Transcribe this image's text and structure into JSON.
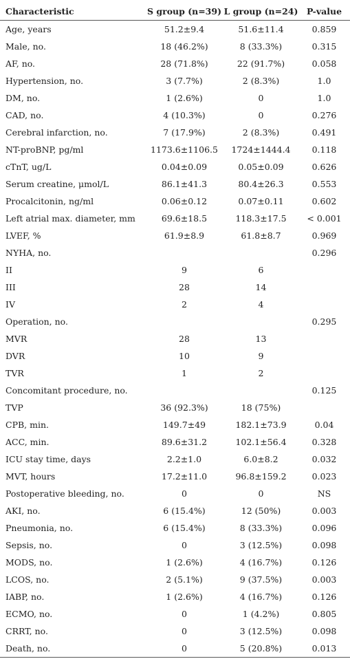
{
  "table": {
    "headers": [
      "Characteristic",
      "S group (n=39)",
      "L group (n=24)",
      "P-value"
    ],
    "rows": [
      [
        "Age, years",
        "51.2±9.4",
        "51.6±11.4",
        "0.859"
      ],
      [
        "Male, no.",
        "18 (46.2%)",
        "8 (33.3%)",
        "0.315"
      ],
      [
        "AF, no.",
        "28 (71.8%)",
        "22 (91.7%)",
        "0.058"
      ],
      [
        "Hypertension, no.",
        "3 (7.7%)",
        "2 (8.3%)",
        "1.0"
      ],
      [
        "DM, no.",
        "1 (2.6%)",
        "0",
        "1.0"
      ],
      [
        "CAD, no.",
        "4 (10.3%)",
        "0",
        "0.276"
      ],
      [
        "Cerebral infarction, no.",
        "7 (17.9%)",
        "2 (8.3%)",
        "0.491"
      ],
      [
        "NT-proBNP, pg/ml",
        "1173.6±1106.5",
        "1724±1444.4",
        "0.118"
      ],
      [
        "cTnT, ug/L",
        "0.04±0.09",
        "0.05±0.09",
        "0.626"
      ],
      [
        "Serum creatine, μmol/L",
        "86.1±41.3",
        "80.4±26.3",
        "0.553"
      ],
      [
        "Procalcitonin, ng/ml",
        "0.06±0.12",
        "0.07±0.11",
        "0.602"
      ],
      [
        "Left atrial max. diameter, mm",
        "69.6±18.5",
        "118.3±17.5",
        "< 0.001"
      ],
      [
        "LVEF, %",
        "61.9±8.9",
        "61.8±8.7",
        "0.969"
      ],
      [
        "NYHA, no.",
        "",
        "",
        "0.296"
      ],
      [
        "II",
        "9",
        "6",
        ""
      ],
      [
        "III",
        "28",
        "14",
        ""
      ],
      [
        "IV",
        "2",
        "4",
        ""
      ],
      [
        "Operation, no.",
        "",
        "",
        "0.295"
      ],
      [
        "MVR",
        "28",
        "13",
        ""
      ],
      [
        "DVR",
        "10",
        "9",
        ""
      ],
      [
        "TVR",
        "1",
        "2",
        ""
      ],
      [
        "Concomitant procedure, no.",
        "",
        "",
        "0.125"
      ],
      [
        "TVP",
        "36 (92.3%)",
        "18 (75%)",
        ""
      ],
      [
        "CPB, min.",
        "149.7±49",
        "182.1±73.9",
        "0.04"
      ],
      [
        "ACC, min.",
        "89.6±31.2",
        "102.1±56.4",
        "0.328"
      ],
      [
        "ICU stay time, days",
        "2.2±1.0",
        "6.0±8.2",
        "0.032"
      ],
      [
        "MVT, hours",
        "17.2±11.0",
        "96.8±159.2",
        "0.023"
      ],
      [
        "Postoperative bleeding, no.",
        "0",
        "0",
        "NS"
      ],
      [
        "AKI, no.",
        "6 (15.4%)",
        "12 (50%)",
        "0.003"
      ],
      [
        "Pneumonia, no.",
        "6 (15.4%)",
        "8 (33.3%)",
        "0.096"
      ],
      [
        "Sepsis, no.",
        "0",
        "3 (12.5%)",
        "0.098"
      ],
      [
        "MODS, no.",
        "1 (2.6%)",
        "4 (16.7%)",
        "0.126"
      ],
      [
        "LCOS, no.",
        "2 (5.1%)",
        "9 (37.5%)",
        "0.003"
      ],
      [
        "IABP, no.",
        "1 (2.6%)",
        "4 (16.7%)",
        "0.126"
      ],
      [
        "ECMO, no.",
        "0",
        "1 (4.2%)",
        "0.805"
      ],
      [
        "CRRT, no.",
        "0",
        "3 (12.5%)",
        "0.098"
      ],
      [
        "Death, no.",
        "0",
        "5 (20.8%)",
        "0.013"
      ]
    ]
  }
}
